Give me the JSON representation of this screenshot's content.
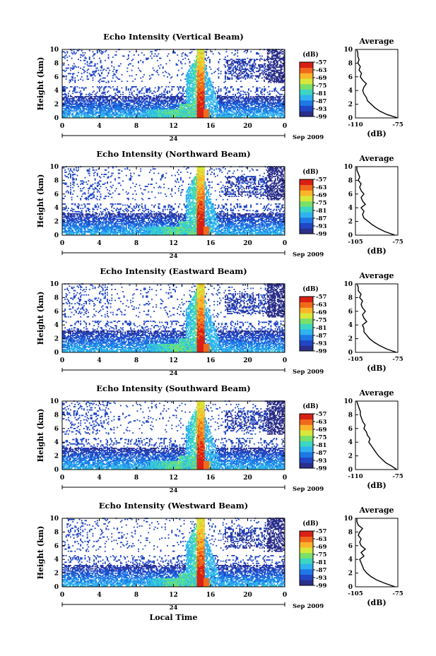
{
  "figure": {
    "xlabel": "Local Time",
    "date_label": "Sep 2009",
    "colorbar_unit": "(dB)",
    "colorbar_ticks": [
      "-57",
      "-63",
      "-69",
      "-75",
      "-81",
      "-87",
      "-93",
      "-99"
    ],
    "average_title": "Average",
    "average_xlabel": "(dB)",
    "colormap": [
      "#2b2f8a",
      "#2147c4",
      "#1e78e6",
      "#2fb3ef",
      "#3cd6c3",
      "#79e06a",
      "#d8e83a",
      "#fbb52a",
      "#f16a1c",
      "#d92015"
    ]
  },
  "chart_data": [
    {
      "type": "heatmap",
      "title": "Echo Intensity (Vertical Beam)",
      "ylabel": "Height (km)",
      "xlim": [
        0,
        24
      ],
      "ylim": [
        0,
        10
      ],
      "xticks": [
        "0",
        "4",
        "8",
        "12",
        "16",
        "20",
        "0"
      ],
      "yticks": [
        "0",
        "2",
        "4",
        "6",
        "8",
        "10"
      ],
      "day_marker": "24",
      "clim": [
        -99,
        -57
      ],
      "average": {
        "xticks": [
          "-110",
          "-75"
        ],
        "xlim": [
          -110,
          -75
        ],
        "profile": [
          [
            -75,
            0
          ],
          [
            -84,
            0.5
          ],
          [
            -90,
            1
          ],
          [
            -94,
            1.5
          ],
          [
            -97,
            2
          ],
          [
            -100,
            2.5
          ],
          [
            -101,
            3
          ],
          [
            -103,
            3.5
          ],
          [
            -104,
            4
          ],
          [
            -103,
            4.5
          ],
          [
            -101,
            5
          ],
          [
            -104,
            5.5
          ],
          [
            -106,
            6
          ],
          [
            -105,
            6.5
          ],
          [
            -107,
            7
          ],
          [
            -106,
            7.5
          ],
          [
            -108,
            8
          ],
          [
            -107,
            8.5
          ],
          [
            -108,
            9
          ],
          [
            -108,
            9.5
          ],
          [
            -109,
            10
          ]
        ]
      }
    },
    {
      "type": "heatmap",
      "title": "Echo Intensity (Northward Beam)",
      "ylabel": "Height (km)",
      "xlim": [
        0,
        24
      ],
      "ylim": [
        0,
        10
      ],
      "xticks": [
        "0",
        "4",
        "8",
        "12",
        "16",
        "20",
        "0"
      ],
      "yticks": [
        "0",
        "2",
        "4",
        "6",
        "8",
        "10"
      ],
      "day_marker": "24",
      "clim": [
        -99,
        -57
      ],
      "average": {
        "xticks": [
          "-105",
          "-75"
        ],
        "xlim": [
          -105,
          -75
        ],
        "profile": [
          [
            -77,
            0
          ],
          [
            -84,
            0.5
          ],
          [
            -89,
            1
          ],
          [
            -93,
            1.5
          ],
          [
            -96,
            2
          ],
          [
            -99,
            2.5
          ],
          [
            -100,
            3
          ],
          [
            -99,
            3.5
          ],
          [
            -101,
            4
          ],
          [
            -98,
            4.5
          ],
          [
            -100,
            5
          ],
          [
            -101,
            5.5
          ],
          [
            -99,
            6
          ],
          [
            -101,
            6.5
          ],
          [
            -102,
            7
          ],
          [
            -101,
            7.5
          ],
          [
            -103,
            8
          ],
          [
            -102,
            8.5
          ],
          [
            -103,
            9
          ],
          [
            -104,
            9.5
          ],
          [
            -104,
            10
          ]
        ]
      }
    },
    {
      "type": "heatmap",
      "title": "Echo Intensity (Eastward Beam)",
      "ylabel": "Height (km)",
      "xlim": [
        0,
        24
      ],
      "ylim": [
        0,
        10
      ],
      "xticks": [
        "0",
        "4",
        "8",
        "12",
        "16",
        "20",
        "0"
      ],
      "yticks": [
        "0",
        "2",
        "4",
        "6",
        "8",
        "10"
      ],
      "day_marker": "24",
      "clim": [
        -99,
        -57
      ],
      "average": {
        "xticks": [
          "-105",
          "-75"
        ],
        "xlim": [
          -105,
          -75
        ],
        "profile": [
          [
            -76,
            0
          ],
          [
            -83,
            0.5
          ],
          [
            -88,
            1
          ],
          [
            -92,
            1.5
          ],
          [
            -95,
            2
          ],
          [
            -97,
            2.5
          ],
          [
            -99,
            3
          ],
          [
            -99,
            3.5
          ],
          [
            -100,
            4
          ],
          [
            -97,
            4.5
          ],
          [
            -99,
            5
          ],
          [
            -100,
            5.5
          ],
          [
            -98,
            6
          ],
          [
            -100,
            6.5
          ],
          [
            -101,
            7
          ],
          [
            -100,
            7.5
          ],
          [
            -102,
            8
          ],
          [
            -101,
            8.5
          ],
          [
            -103,
            9
          ],
          [
            -103,
            9.5
          ],
          [
            -104,
            10
          ]
        ]
      }
    },
    {
      "type": "heatmap",
      "title": "Echo Intensity (Southward Beam)",
      "ylabel": "Height (km)",
      "xlim": [
        0,
        24
      ],
      "ylim": [
        0,
        10
      ],
      "xticks": [
        "0",
        "4",
        "8",
        "12",
        "16",
        "20",
        "0"
      ],
      "yticks": [
        "0",
        "2",
        "4",
        "6",
        "8",
        "10"
      ],
      "day_marker": "24",
      "clim": [
        -99,
        -57
      ],
      "average": {
        "xticks": [
          "-110",
          "-75"
        ],
        "xlim": [
          -110,
          -75
        ],
        "profile": [
          [
            -76,
            0
          ],
          [
            -80,
            0.5
          ],
          [
            -85,
            1
          ],
          [
            -88,
            1.5
          ],
          [
            -91,
            2
          ],
          [
            -93,
            2.5
          ],
          [
            -95,
            3
          ],
          [
            -97,
            3.5
          ],
          [
            -99,
            4
          ],
          [
            -98,
            4.5
          ],
          [
            -100,
            5
          ],
          [
            -101,
            5.5
          ],
          [
            -103,
            6
          ],
          [
            -102,
            6.5
          ],
          [
            -104,
            7
          ],
          [
            -105,
            7.5
          ],
          [
            -106,
            8
          ],
          [
            -106,
            8.5
          ],
          [
            -107,
            9
          ],
          [
            -108,
            9.5
          ],
          [
            -109,
            10
          ]
        ]
      }
    },
    {
      "type": "heatmap",
      "title": "Echo Intensity (Westward Beam)",
      "ylabel": "Height (km)",
      "xlim": [
        0,
        24
      ],
      "ylim": [
        0,
        10
      ],
      "xticks": [
        "0",
        "4",
        "8",
        "12",
        "16",
        "20",
        "0"
      ],
      "yticks": [
        "0",
        "2",
        "4",
        "6",
        "8",
        "10"
      ],
      "day_marker": "24",
      "clim": [
        -99,
        -57
      ],
      "average": {
        "xticks": [
          "-105",
          "-75"
        ],
        "xlim": [
          -105,
          -75
        ],
        "profile": [
          [
            -77,
            0
          ],
          [
            -84,
            0.5
          ],
          [
            -90,
            1
          ],
          [
            -94,
            1.5
          ],
          [
            -97,
            2
          ],
          [
            -99,
            2.5
          ],
          [
            -100,
            3
          ],
          [
            -101,
            3.5
          ],
          [
            -102,
            4
          ],
          [
            -99,
            4.5
          ],
          [
            -101,
            5
          ],
          [
            -98,
            5.5
          ],
          [
            -101,
            6
          ],
          [
            -102,
            6.5
          ],
          [
            -101,
            7
          ],
          [
            -103,
            7.5
          ],
          [
            -102,
            8
          ],
          [
            -100,
            8.5
          ],
          [
            -103,
            9
          ],
          [
            -104,
            9.5
          ],
          [
            -104,
            10
          ]
        ]
      }
    }
  ]
}
